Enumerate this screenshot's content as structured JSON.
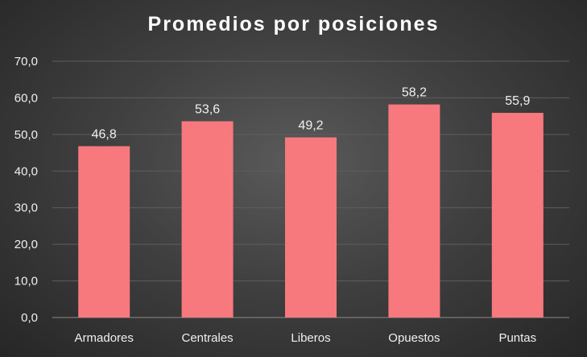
{
  "chart_data": {
    "type": "bar",
    "title": "Promedios por posiciones",
    "xlabel": "",
    "ylabel": "",
    "categories": [
      "Armadores",
      "Centrales",
      "Liberos",
      "Opuestos",
      "Puntas"
    ],
    "values": [
      46.8,
      53.6,
      49.2,
      58.2,
      55.9
    ],
    "data_labels": [
      "46,8",
      "53,6",
      "49,2",
      "58,2",
      "55,9"
    ],
    "ylim": [
      0,
      70
    ],
    "yticks": [
      "0,0",
      "10,0",
      "20,0",
      "30,0",
      "40,0",
      "50,0",
      "60,0",
      "70,0"
    ],
    "grid": true,
    "legend": "none",
    "bar_color": "#f7797d"
  }
}
